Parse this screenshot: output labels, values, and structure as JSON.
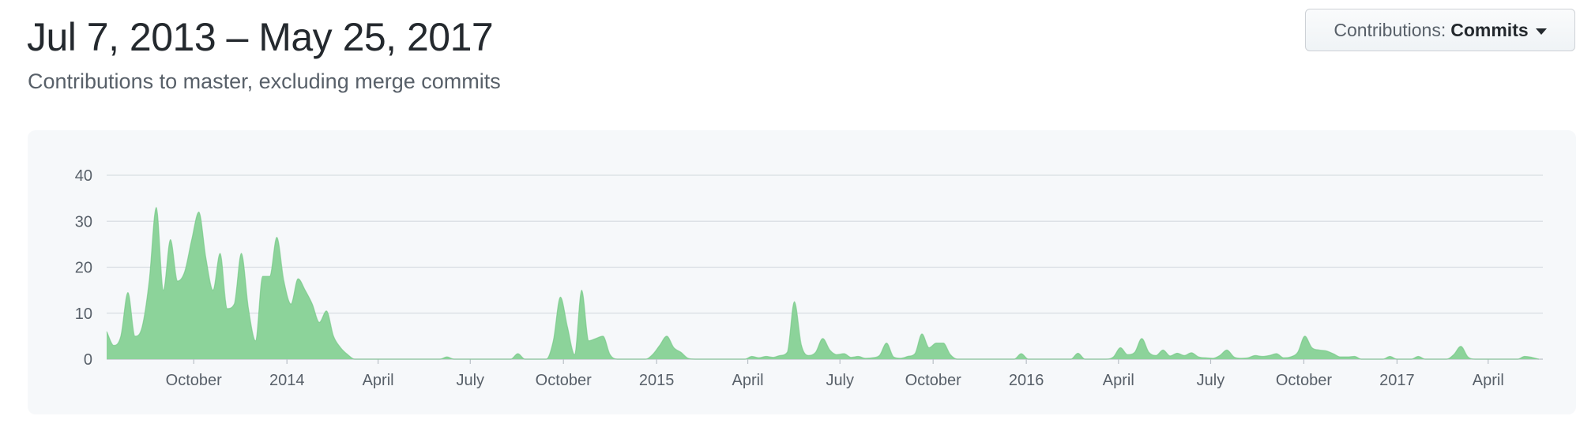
{
  "header": {
    "date_range": "Jul 7, 2013 – May 25, 2017",
    "subtitle": "Contributions to master, excluding merge commits"
  },
  "dropdown": {
    "prefix": "Contributions:",
    "value": "Commits"
  },
  "colors": {
    "area_fill": "#8cd39a",
    "area_stroke": "#6cc57f",
    "grid": "#d8dde2",
    "panel_bg": "#f6f8fa"
  },
  "chart_data": {
    "type": "area",
    "title": "",
    "xlabel": "",
    "ylabel": "",
    "ylim": [
      0,
      40
    ],
    "yticks": [
      0,
      10,
      20,
      30,
      40
    ],
    "grid": true,
    "x_ticks": [
      {
        "label": "October",
        "date": "2013-10-01"
      },
      {
        "label": "2014",
        "date": "2014-01-01"
      },
      {
        "label": "April",
        "date": "2014-04-01"
      },
      {
        "label": "July",
        "date": "2014-07-01"
      },
      {
        "label": "October",
        "date": "2014-10-01"
      },
      {
        "label": "2015",
        "date": "2015-01-01"
      },
      {
        "label": "April",
        "date": "2015-04-01"
      },
      {
        "label": "July",
        "date": "2015-07-01"
      },
      {
        "label": "October",
        "date": "2015-10-01"
      },
      {
        "label": "2016",
        "date": "2016-01-01"
      },
      {
        "label": "April",
        "date": "2016-04-01"
      },
      {
        "label": "July",
        "date": "2016-07-01"
      },
      {
        "label": "October",
        "date": "2016-10-01"
      },
      {
        "label": "2017",
        "date": "2017-01-01"
      },
      {
        "label": "April",
        "date": "2017-04-01"
      }
    ],
    "series": [
      {
        "points": [
          [
            "2013-07-07",
            6
          ],
          [
            "2013-07-14",
            3
          ],
          [
            "2013-07-21",
            5
          ],
          [
            "2013-07-28",
            14.5
          ],
          [
            "2013-08-04",
            5
          ],
          [
            "2013-08-11",
            7
          ],
          [
            "2013-08-18",
            17
          ],
          [
            "2013-08-25",
            33
          ],
          [
            "2013-09-01",
            15
          ],
          [
            "2013-09-08",
            26
          ],
          [
            "2013-09-15",
            17
          ],
          [
            "2013-09-22",
            19
          ],
          [
            "2013-09-29",
            26
          ],
          [
            "2013-10-06",
            32
          ],
          [
            "2013-10-13",
            22
          ],
          [
            "2013-10-20",
            15
          ],
          [
            "2013-10-27",
            23
          ],
          [
            "2013-11-03",
            11
          ],
          [
            "2013-11-10",
            12
          ],
          [
            "2013-11-17",
            23
          ],
          [
            "2013-11-24",
            11
          ],
          [
            "2013-12-01",
            4
          ],
          [
            "2013-12-08",
            18
          ],
          [
            "2013-12-15",
            18
          ],
          [
            "2013-12-22",
            26.5
          ],
          [
            "2013-12-29",
            17
          ],
          [
            "2014-01-05",
            12
          ],
          [
            "2014-01-12",
            17.5
          ],
          [
            "2014-01-19",
            15
          ],
          [
            "2014-01-26",
            12
          ],
          [
            "2014-02-02",
            8
          ],
          [
            "2014-02-09",
            10.5
          ],
          [
            "2014-02-16",
            5
          ],
          [
            "2014-02-23",
            2.5
          ],
          [
            "2014-03-02",
            1
          ],
          [
            "2014-03-09",
            0
          ],
          [
            "2014-06-01",
            0
          ],
          [
            "2014-06-08",
            0.5
          ],
          [
            "2014-06-15",
            0
          ],
          [
            "2014-08-10",
            0
          ],
          [
            "2014-08-17",
            1.2
          ],
          [
            "2014-08-24",
            0
          ],
          [
            "2014-09-14",
            0
          ],
          [
            "2014-09-21",
            4
          ],
          [
            "2014-09-28",
            13.5
          ],
          [
            "2014-10-05",
            7
          ],
          [
            "2014-10-12",
            1
          ],
          [
            "2014-10-19",
            15
          ],
          [
            "2014-10-26",
            4
          ],
          [
            "2014-11-02",
            4.5
          ],
          [
            "2014-11-09",
            5
          ],
          [
            "2014-11-16",
            1
          ],
          [
            "2014-11-23",
            0
          ],
          [
            "2014-12-21",
            0
          ],
          [
            "2014-12-28",
            1
          ],
          [
            "2015-01-04",
            3
          ],
          [
            "2015-01-11",
            5
          ],
          [
            "2015-01-18",
            2.5
          ],
          [
            "2015-01-25",
            1.5
          ],
          [
            "2015-02-01",
            0.2
          ],
          [
            "2015-02-08",
            0
          ],
          [
            "2015-03-29",
            0
          ],
          [
            "2015-04-05",
            0.6
          ],
          [
            "2015-04-12",
            0.3
          ],
          [
            "2015-04-19",
            0.6
          ],
          [
            "2015-04-26",
            0.4
          ],
          [
            "2015-05-03",
            0.8
          ],
          [
            "2015-05-10",
            1.5
          ],
          [
            "2015-05-17",
            12.5
          ],
          [
            "2015-05-24",
            3
          ],
          [
            "2015-05-31",
            0.8
          ],
          [
            "2015-06-07",
            1.5
          ],
          [
            "2015-06-14",
            4.5
          ],
          [
            "2015-06-21",
            2
          ],
          [
            "2015-06-28",
            1
          ],
          [
            "2015-07-05",
            1.2
          ],
          [
            "2015-07-12",
            0.4
          ],
          [
            "2015-07-19",
            0.6
          ],
          [
            "2015-07-26",
            0.2
          ],
          [
            "2015-08-02",
            0.3
          ],
          [
            "2015-08-09",
            0.8
          ],
          [
            "2015-08-16",
            3.5
          ],
          [
            "2015-08-23",
            0.5
          ],
          [
            "2015-08-30",
            0.2
          ],
          [
            "2015-09-06",
            0.6
          ],
          [
            "2015-09-13",
            1.2
          ],
          [
            "2015-09-20",
            5.5
          ],
          [
            "2015-09-27",
            2.5
          ],
          [
            "2015-10-04",
            3.5
          ],
          [
            "2015-10-11",
            3.5
          ],
          [
            "2015-10-18",
            1
          ],
          [
            "2015-10-25",
            0
          ],
          [
            "2015-12-20",
            0
          ],
          [
            "2015-12-27",
            1.2
          ],
          [
            "2016-01-03",
            0
          ],
          [
            "2016-02-14",
            0
          ],
          [
            "2016-02-21",
            1.3
          ],
          [
            "2016-02-28",
            0
          ],
          [
            "2016-03-20",
            0
          ],
          [
            "2016-03-27",
            0.5
          ],
          [
            "2016-04-03",
            2.5
          ],
          [
            "2016-04-10",
            1
          ],
          [
            "2016-04-17",
            1.5
          ],
          [
            "2016-04-24",
            4.5
          ],
          [
            "2016-05-01",
            1.5
          ],
          [
            "2016-05-08",
            0.8
          ],
          [
            "2016-05-15",
            2
          ],
          [
            "2016-05-22",
            0.7
          ],
          [
            "2016-05-29",
            1.3
          ],
          [
            "2016-06-05",
            0.8
          ],
          [
            "2016-06-12",
            1.4
          ],
          [
            "2016-06-19",
            0.5
          ],
          [
            "2016-06-26",
            0.3
          ],
          [
            "2016-07-03",
            0.2
          ],
          [
            "2016-07-10",
            0.8
          ],
          [
            "2016-07-17",
            2
          ],
          [
            "2016-07-24",
            0.5
          ],
          [
            "2016-07-31",
            0.2
          ],
          [
            "2016-08-07",
            0.3
          ],
          [
            "2016-08-14",
            0.8
          ],
          [
            "2016-08-21",
            0.6
          ],
          [
            "2016-08-28",
            0.8
          ],
          [
            "2016-09-04",
            1.2
          ],
          [
            "2016-09-11",
            0.3
          ],
          [
            "2016-09-18",
            0.5
          ],
          [
            "2016-09-25",
            1.5
          ],
          [
            "2016-10-02",
            5
          ],
          [
            "2016-10-09",
            2.5
          ],
          [
            "2016-10-16",
            2
          ],
          [
            "2016-10-23",
            1.8
          ],
          [
            "2016-10-30",
            1.2
          ],
          [
            "2016-11-06",
            0.5
          ],
          [
            "2016-11-13",
            0.5
          ],
          [
            "2016-11-20",
            0.6
          ],
          [
            "2016-11-27",
            0
          ],
          [
            "2016-12-18",
            0
          ],
          [
            "2016-12-25",
            0.6
          ],
          [
            "2017-01-01",
            0
          ],
          [
            "2017-01-15",
            0
          ],
          [
            "2017-01-22",
            0.6
          ],
          [
            "2017-01-29",
            0
          ],
          [
            "2017-02-19",
            0
          ],
          [
            "2017-02-26",
            1
          ],
          [
            "2017-03-05",
            2.8
          ],
          [
            "2017-03-12",
            0.5
          ],
          [
            "2017-03-19",
            0
          ],
          [
            "2017-04-30",
            0
          ],
          [
            "2017-05-07",
            0.6
          ],
          [
            "2017-05-14",
            0.4
          ],
          [
            "2017-05-21",
            0
          ]
        ]
      }
    ]
  }
}
